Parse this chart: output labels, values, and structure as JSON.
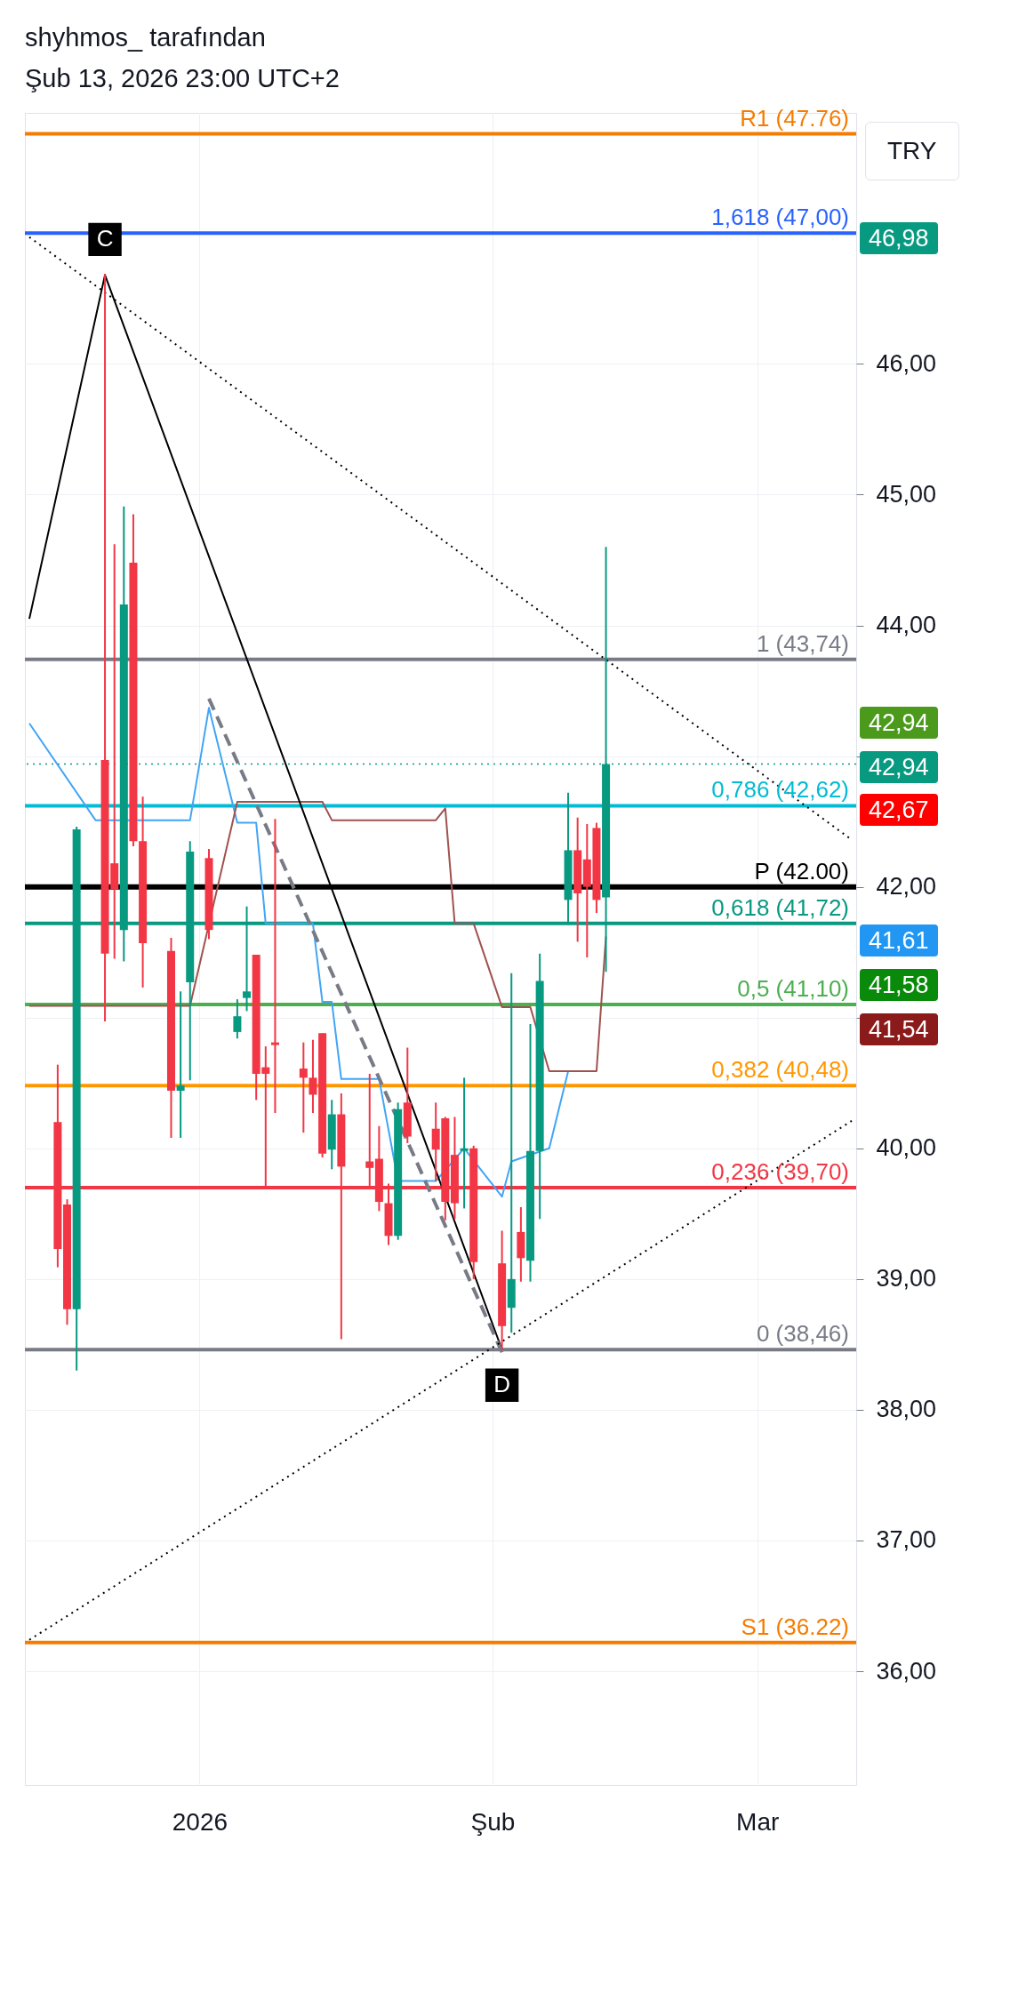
{
  "chart_data": {
    "type": "candlestick",
    "title": "shyhmos_ tarafından",
    "subtitle": "Şub 13, 2026 23:00 UTC+2",
    "xlim": [
      "2025-12-14",
      "2026-03-11"
    ],
    "xticks": [
      {
        "value": "2026-01-01",
        "label": "2026"
      },
      {
        "value": "2026-02-01",
        "label": "Şub"
      },
      {
        "value": "2026-03-01",
        "label": "Mar"
      }
    ],
    "ylim": [
      35.13,
      47.92
    ],
    "yticks": [
      {
        "value": 36,
        "label": "36,00"
      },
      {
        "value": 37,
        "label": "37,00"
      },
      {
        "value": 38,
        "label": "38,00"
      },
      {
        "value": 39,
        "label": "39,00"
      },
      {
        "value": 40,
        "label": "40,00"
      },
      {
        "value": 41,
        "label": null
      },
      {
        "value": 42,
        "label": "42,00"
      },
      {
        "value": 43,
        "label": null
      },
      {
        "value": 44,
        "label": "44,00"
      },
      {
        "value": 45,
        "label": "45,00"
      },
      {
        "value": 46,
        "label": "46,00"
      }
    ],
    "grid": true,
    "series": [
      {
        "type": "line",
        "color": "#42a5f5",
        "x": [
          "2025-12-14",
          "2025-12-21",
          "2025-12-31",
          "2026-01-02",
          "2026-01-05",
          "2026-01-07",
          "2026-01-08",
          "2026-01-13",
          "2026-01-14",
          "2026-01-15",
          "2026-01-16",
          "2026-01-20",
          "2026-01-22",
          "2026-01-26",
          "2026-01-29",
          "2026-02-02",
          "2026-02-03",
          "2026-02-07",
          "2026-02-09"
        ],
        "values": [
          43.25,
          42.51,
          42.51,
          43.37,
          42.49,
          42.49,
          41.72,
          41.72,
          41.12,
          41.12,
          40.53,
          40.53,
          39.75,
          39.75,
          40.0,
          39.63,
          39.9,
          40.0,
          40.59
        ]
      },
      {
        "type": "line",
        "color": "#a0524f",
        "x": [
          "2025-12-14",
          "2025-12-31",
          "2026-01-05",
          "2026-01-14",
          "2026-01-15",
          "2026-01-26",
          "2026-01-27",
          "2026-01-28",
          "2026-01-30",
          "2026-02-02",
          "2026-02-05",
          "2026-02-07",
          "2026-02-12",
          "2026-02-13"
        ],
        "values": [
          41.09,
          41.09,
          42.65,
          42.65,
          42.51,
          42.51,
          42.6,
          41.72,
          41.72,
          41.08,
          41.08,
          40.59,
          40.59,
          41.62
        ]
      },
      {
        "type": "line",
        "color": "#000000",
        "x": [
          "2025-12-14",
          "2025-12-22",
          "2026-02-02"
        ],
        "values": [
          44.05,
          46.68,
          38.46
        ]
      },
      {
        "type": "line",
        "color": "#787b86",
        "line_style": "dashed",
        "x": [
          "2026-01-02",
          "2026-02-02"
        ],
        "values": [
          43.44,
          38.44
        ]
      },
      {
        "type": "line",
        "color": "#000000",
        "line_style": "dotted",
        "x": [
          "2025-12-14",
          "2026-03-11"
        ],
        "values": [
          46.97,
          42.36
        ]
      },
      {
        "type": "line",
        "color": "#000000",
        "line_style": "dotted",
        "x": [
          "2025-12-14",
          "2026-03-11"
        ],
        "values": [
          36.24,
          40.21
        ]
      },
      {
        "x": [
          "2025-12-17",
          "2025-12-18",
          "2025-12-19",
          "2025-12-22",
          "2025-12-23",
          "2025-12-24",
          "2025-12-25",
          "2025-12-26",
          "2025-12-29",
          "2025-12-30",
          "2025-12-31",
          "2026-01-02",
          "2026-01-05",
          "2026-01-06",
          "2026-01-07",
          "2026-01-08",
          "2026-01-09",
          "2026-01-12",
          "2026-01-13",
          "2026-01-14",
          "2026-01-15",
          "2026-01-16",
          "2026-01-19",
          "2026-01-20",
          "2026-01-21",
          "2026-01-22",
          "2026-01-23",
          "2026-01-26",
          "2026-01-27",
          "2026-01-28",
          "2026-01-29",
          "2026-01-30",
          "2026-02-02",
          "2026-02-03",
          "2026-02-04",
          "2026-02-05",
          "2026-02-06",
          "2026-02-09",
          "2026-02-10",
          "2026-02-11",
          "2026-02-12",
          "2026-02-13"
        ],
        "ohlc": [
          [
            40.2,
            40.64,
            39.09,
            39.23
          ],
          [
            39.57,
            39.61,
            38.65,
            38.77
          ],
          [
            38.77,
            42.46,
            38.3,
            42.44
          ],
          [
            42.97,
            46.69,
            40.97,
            41.49
          ],
          [
            42.18,
            44.62,
            41.45,
            41.98
          ],
          [
            41.67,
            44.91,
            41.43,
            44.16
          ],
          [
            44.48,
            44.85,
            42.31,
            42.35
          ],
          [
            42.35,
            42.69,
            41.23,
            41.57
          ],
          [
            41.51,
            41.61,
            40.08,
            40.44
          ],
          [
            40.44,
            41.2,
            40.08,
            40.48
          ],
          [
            41.27,
            42.35,
            40.52,
            42.27
          ],
          [
            42.22,
            42.29,
            41.6,
            41.67
          ],
          [
            40.89,
            41.14,
            40.84,
            41.01
          ],
          [
            41.15,
            41.85,
            41.05,
            41.2
          ],
          [
            41.48,
            41.48,
            40.37,
            40.57
          ],
          [
            40.62,
            40.78,
            39.71,
            40.57
          ],
          [
            40.81,
            42.52,
            40.27,
            40.79
          ],
          [
            40.61,
            40.81,
            40.12,
            40.54
          ],
          [
            40.54,
            40.83,
            40.27,
            40.41
          ],
          [
            40.88,
            40.88,
            39.93,
            39.96
          ],
          [
            39.99,
            40.37,
            39.84,
            40.26
          ],
          [
            40.26,
            40.42,
            38.54,
            39.86
          ],
          [
            39.9,
            40.57,
            39.71,
            39.85
          ],
          [
            39.92,
            40.17,
            39.52,
            39.59
          ],
          [
            39.58,
            39.73,
            39.26,
            39.33
          ],
          [
            39.33,
            40.35,
            39.3,
            40.3
          ],
          [
            40.35,
            40.77,
            40.04,
            40.09
          ],
          [
            40.15,
            40.35,
            39.75,
            39.99
          ],
          [
            40.23,
            40.24,
            39.45,
            39.59
          ],
          [
            39.95,
            40.24,
            39.46,
            39.58
          ],
          [
            39.98,
            40.54,
            39.54,
            40.0
          ],
          [
            40.0,
            40.02,
            39.0,
            39.13
          ],
          [
            39.12,
            39.37,
            38.46,
            38.64
          ],
          [
            38.78,
            41.34,
            38.59,
            39.0
          ],
          [
            39.36,
            39.55,
            38.98,
            39.16
          ],
          [
            39.14,
            40.95,
            38.98,
            39.98
          ],
          [
            39.98,
            41.49,
            39.46,
            41.28
          ],
          [
            41.9,
            42.72,
            41.71,
            42.28
          ],
          [
            42.28,
            42.53,
            41.58,
            41.95
          ],
          [
            42.21,
            42.48,
            41.46,
            42.0
          ],
          [
            42.45,
            42.49,
            41.8,
            41.9
          ],
          [
            41.92,
            44.6,
            41.35,
            42.94
          ]
        ]
      }
    ],
    "ref_lines": [
      {
        "axis": "y",
        "value": 47.76,
        "label": "R1 (47.76)",
        "color": "#f57c00"
      },
      {
        "axis": "y",
        "value": 47.0,
        "label": "1,618 (47,00)",
        "color": "#2962ff"
      },
      {
        "axis": "y",
        "value": 43.74,
        "label": "1 (43,74)",
        "color": "#787b86"
      },
      {
        "axis": "y",
        "value": 42.94,
        "color": "#089981",
        "line_style": "dotted"
      },
      {
        "axis": "y",
        "value": 42.62,
        "label": "0,786 (42,62)",
        "color": "#00bcd4"
      },
      {
        "axis": "y",
        "value": 42.0,
        "label": "P (42.00)",
        "color": "#000000"
      },
      {
        "axis": "y",
        "value": 41.72,
        "label": "0,618 (41,72)",
        "color": "#089981"
      },
      {
        "axis": "y",
        "value": 41.1,
        "label": "0,5 (41,10)",
        "color": "#4caf50"
      },
      {
        "axis": "y",
        "value": 40.48,
        "label": "0,382 (40,48)",
        "color": "#ff9800"
      },
      {
        "axis": "y",
        "value": 39.7,
        "label": "0,236 (39,70)",
        "color": "#f23645"
      },
      {
        "axis": "y",
        "value": 38.46,
        "label": "0 (38,46)",
        "color": "#787b86"
      },
      {
        "axis": "y",
        "value": 36.22,
        "label": "S1 (36.22)",
        "color": "#f57c00"
      }
    ],
    "annotations": [
      "TRY",
      {
        "text": "C",
        "x": "2025-12-22",
        "y": 46.68
      },
      {
        "text": "D",
        "x": "2026-02-02",
        "y": 38.46
      },
      "46,98",
      "42,94",
      "42,94",
      "42,67",
      "41,61",
      "41,58",
      "41,54"
    ]
  }
}
